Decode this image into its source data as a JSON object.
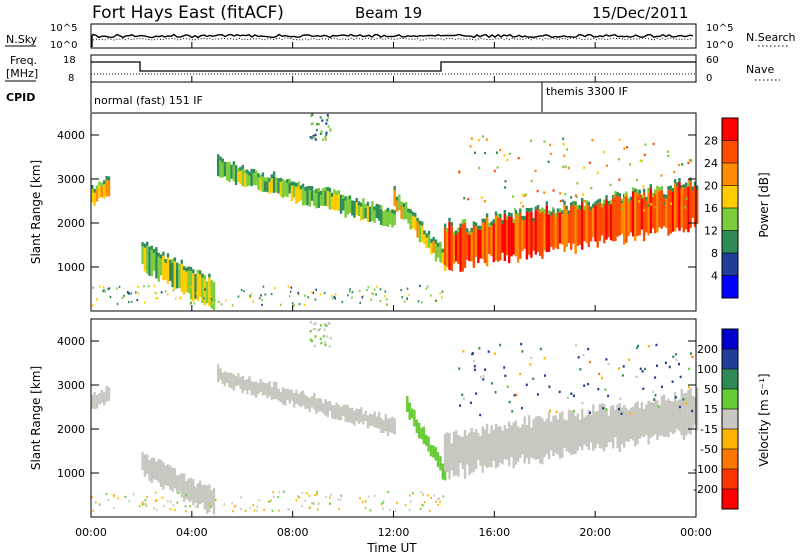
{
  "header": {
    "title": "Fort Hays East (fitACF)",
    "beam": "Beam 19",
    "date": "15/Dec/2011"
  },
  "noise_panel": {
    "left_label": "N.Sky",
    "left_ticks": [
      "10^5",
      "10^0"
    ],
    "right_label": "N.Search",
    "right_ticks": [
      "10^5",
      "10^0"
    ]
  },
  "freq_panel": {
    "left_label_1": "Freq.",
    "left_label_2": "[MHz]",
    "left_ticks": [
      "18",
      "8"
    ],
    "right_label": "Nave",
    "right_ticks": [
      "60",
      "0"
    ]
  },
  "cpid_panel": {
    "label": "CPID",
    "modes": [
      "normal (fast) 151 IF",
      "themis 3300 IF"
    ]
  },
  "power_colorbar": {
    "label": "Power [dB]",
    "ticks": [
      "28",
      "24",
      "20",
      "16",
      "12",
      "8",
      "4"
    ],
    "colors": [
      "#ff0000",
      "#ff4d00",
      "#ff8c00",
      "#ffcc00",
      "#7ccd3c",
      "#2e8b57",
      "#1f3d99",
      "#0000ff"
    ]
  },
  "velocity_colorbar": {
    "label": "Velocity [m s⁻¹]",
    "ticks": [
      "200",
      "100",
      "50",
      "15",
      "-15",
      "-50",
      "-100",
      "-200"
    ],
    "colors": [
      "#0000cc",
      "#1f3d99",
      "#2e8b57",
      "#66cc33",
      "#c8c8c0",
      "#ffb300",
      "#ff7700",
      "#ff3300",
      "#ff0000"
    ]
  },
  "chart_data": [
    {
      "type": "heatmap",
      "title": "",
      "xlabel": "",
      "ylabel": "Slant Range [km]",
      "xlim": [
        "00:00",
        "24:00"
      ],
      "ylim": [
        0,
        4500
      ],
      "yticks": [
        "4000",
        "3000",
        "2000",
        "1000"
      ],
      "quantity": "Power [dB]",
      "echo_bands": [
        {
          "x": [
            "00:00",
            "00:40"
          ],
          "y_center": [
            2550,
            2800
          ],
          "value": 20
        },
        {
          "x": [
            "02:00",
            "04:50"
          ],
          "y_center": [
            1200,
            350
          ],
          "value": 16
        },
        {
          "x": [
            "05:00",
            "12:00"
          ],
          "y_center": [
            3200,
            2050
          ],
          "value": 16
        },
        {
          "x": [
            "12:00",
            "14:00"
          ],
          "y_center": [
            2500,
            1100
          ],
          "value": 20
        },
        {
          "x": [
            "14:00",
            "24:00"
          ],
          "y_center": [
            1400,
            2400
          ],
          "value": 28
        }
      ]
    },
    {
      "type": "heatmap",
      "title": "",
      "xlabel": "Time UT",
      "ylabel": "Slant Range [km]",
      "xlim": [
        "00:00",
        "24:00"
      ],
      "ylim": [
        0,
        4500
      ],
      "xticks": [
        "00:00",
        "04:00",
        "08:00",
        "12:00",
        "16:00",
        "20:00",
        "00:00"
      ],
      "yticks": [
        "4000",
        "3000",
        "2000",
        "1000"
      ],
      "quantity": "Velocity [m s⁻¹]",
      "echo_bands": [
        {
          "x": [
            "00:00",
            "00:40"
          ],
          "y_center": [
            2550,
            2800
          ],
          "value": 0
        },
        {
          "x": [
            "02:00",
            "04:50"
          ],
          "y_center": [
            1200,
            350
          ],
          "value": 0
        },
        {
          "x": [
            "05:00",
            "12:00"
          ],
          "y_center": [
            3200,
            2050
          ],
          "value": 0
        },
        {
          "x": [
            "12:30",
            "14:00"
          ],
          "y_center": [
            2500,
            1000
          ],
          "value": 30
        },
        {
          "x": [
            "14:00",
            "24:00"
          ],
          "y_center": [
            1400,
            2400
          ],
          "value": 0
        }
      ]
    }
  ]
}
